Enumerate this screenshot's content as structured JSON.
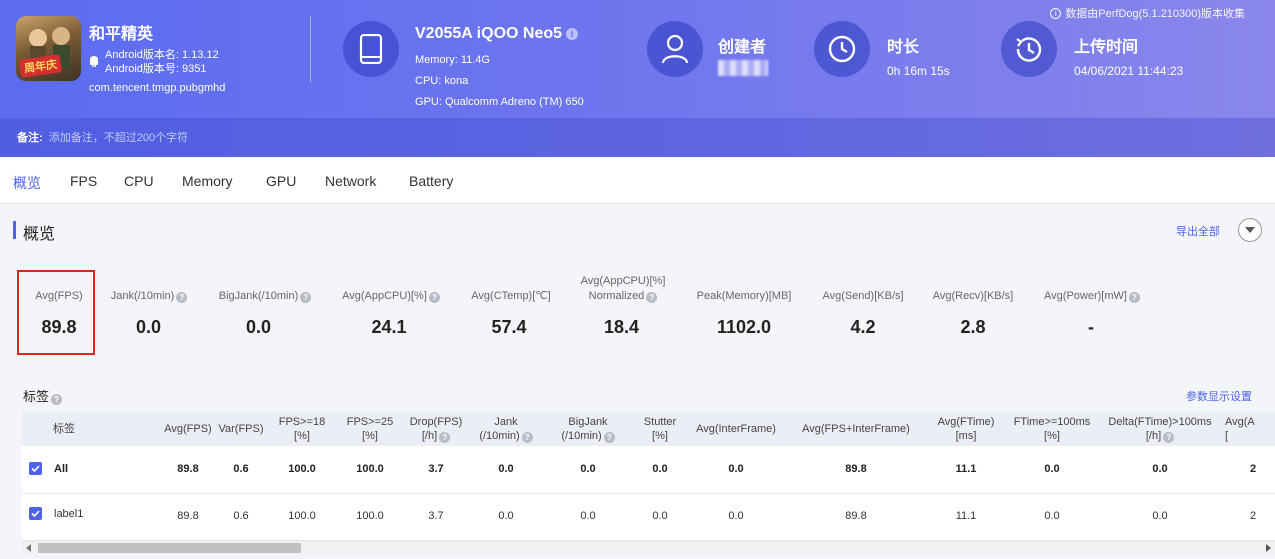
{
  "header": {
    "notice": "数据由PerfDog(5.1.210300)版本收集",
    "game": {
      "name": "和平精英",
      "icon_badge": "周年庆",
      "version_name": "Android版本名: 1.13.12",
      "version_code": "Android版本号: 9351",
      "package": "com.tencent.tmgp.pubgmhd"
    },
    "device": {
      "model": "V2055A iQOO Neo5",
      "memory": "Memory: 11.4G",
      "cpu": "CPU: kona",
      "gpu": "GPU: Qualcomm Adreno (TM) 650"
    },
    "creator": {
      "title": "创建者"
    },
    "duration": {
      "title": "时长",
      "value": "0h 16m 15s"
    },
    "upload": {
      "title": "上传时间",
      "value": "04/06/2021 11:44:23"
    },
    "remark": {
      "label": "备注:",
      "placeholder": "添加备注，不超过200个字符"
    }
  },
  "tabs": [
    "概览",
    "FPS",
    "CPU",
    "Memory",
    "GPU",
    "Network",
    "Battery"
  ],
  "overview": {
    "title": "概览",
    "export_label": "导出全部",
    "metrics": [
      {
        "label": "Avg(FPS)",
        "value": "89.8"
      },
      {
        "label": "Jank(/10min)",
        "value": "0.0"
      },
      {
        "label": "BigJank(/10min)",
        "value": "0.0"
      },
      {
        "label": "Avg(AppCPU)[%]",
        "value": "24.1"
      },
      {
        "label": "Avg(CTemp)[℃]",
        "value": "57.4"
      },
      {
        "label_line1": "Avg(AppCPU)[%]",
        "label_line2": "Normalized",
        "value": "18.4"
      },
      {
        "label": "Peak(Memory)[MB]",
        "value": "1102.0"
      },
      {
        "label": "Avg(Send)[KB/s]",
        "value": "4.2"
      },
      {
        "label": "Avg(Recv)[KB/s]",
        "value": "2.8"
      },
      {
        "label": "Avg(Power)[mW]",
        "value": "-"
      }
    ]
  },
  "tags": {
    "title": "标签",
    "param_settings": "参数显示设置",
    "columns": [
      {
        "l1": "标签",
        "l2": ""
      },
      {
        "l1": "Avg(FPS)",
        "l2": ""
      },
      {
        "l1": "Var(FPS)",
        "l2": ""
      },
      {
        "l1": "FPS>=18",
        "l2": "[%]"
      },
      {
        "l1": "FPS>=25",
        "l2": "[%]"
      },
      {
        "l1": "Drop(FPS)",
        "l2": "[/h]"
      },
      {
        "l1": "Jank",
        "l2": "(/10min)"
      },
      {
        "l1": "BigJank",
        "l2": "(/10min)"
      },
      {
        "l1": "Stutter",
        "l2": "[%]"
      },
      {
        "l1": "Avg(InterFrame)",
        "l2": ""
      },
      {
        "l1": "Avg(FPS+InterFrame)",
        "l2": ""
      },
      {
        "l1": "Avg(FTime)",
        "l2": "[ms]"
      },
      {
        "l1": "FTime>=100ms",
        "l2": "[%]"
      },
      {
        "l1": "Delta(FTime)>100ms",
        "l2": "[/h]"
      },
      {
        "l1": "Avg(A",
        "l2": "["
      }
    ],
    "rows": [
      {
        "label": "All",
        "cells": [
          "89.8",
          "0.6",
          "100.0",
          "100.0",
          "3.7",
          "0.0",
          "0.0",
          "0.0",
          "0.0",
          "89.8",
          "11.1",
          "0.0",
          "0.0",
          "2"
        ]
      },
      {
        "label": "label1",
        "cells": [
          "89.8",
          "0.6",
          "100.0",
          "100.0",
          "3.7",
          "0.0",
          "0.0",
          "0.0",
          "0.0",
          "89.8",
          "11.1",
          "0.0",
          "0.0",
          "2"
        ]
      }
    ]
  },
  "colors": {
    "accent": "#4d64e8",
    "highlight_border": "#e0231d",
    "header_start": "#5b6cf0",
    "header_end": "#8a86ec"
  }
}
